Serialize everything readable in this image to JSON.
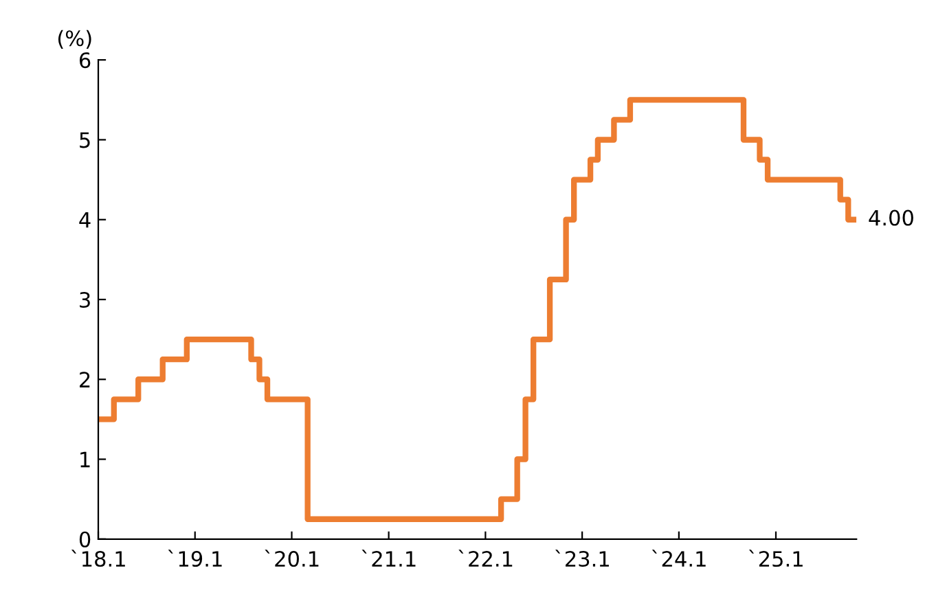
{
  "chart_data": {
    "type": "step",
    "ylabel": "(%)",
    "x": [
      "2018-01",
      "2018-03",
      "2018-06",
      "2018-09",
      "2018-12",
      "2019-08",
      "2019-09",
      "2019-10",
      "2020-03",
      "2022-03",
      "2022-05",
      "2022-06",
      "2022-07",
      "2022-09",
      "2022-11",
      "2022-12",
      "2023-02",
      "2023-03",
      "2023-05",
      "2023-07",
      "2024-09",
      "2024-11",
      "2024-12",
      "2025-09",
      "2025-10",
      "2025-11"
    ],
    "series": [
      {
        "color": "#ed7d31",
        "values": [
          1.5,
          1.75,
          2.0,
          2.25,
          2.5,
          2.25,
          2.0,
          1.75,
          0.25,
          0.5,
          1.0,
          1.75,
          2.5,
          3.25,
          4.0,
          4.5,
          4.75,
          5.0,
          5.25,
          5.5,
          5.0,
          4.75,
          4.5,
          4.25,
          4.0,
          4.0
        ],
        "value_labels": [
          null,
          null,
          null,
          null,
          null,
          null,
          null,
          null,
          null,
          null,
          null,
          null,
          null,
          null,
          null,
          null,
          null,
          null,
          null,
          null,
          null,
          null,
          null,
          null,
          null,
          "4.00"
        ]
      }
    ],
    "xlim": [
      "2018-01",
      "2025-11"
    ],
    "xticks": [
      {
        "value": "2018-01",
        "label": "`18.1"
      },
      {
        "value": "2019-01",
        "label": "`19.1"
      },
      {
        "value": "2020-01",
        "label": "`20.1"
      },
      {
        "value": "2021-01",
        "label": "`21.1"
      },
      {
        "value": "2022-01",
        "label": "`22.1"
      },
      {
        "value": "2023-01",
        "label": "`23.1"
      },
      {
        "value": "2024-01",
        "label": "`24.1"
      },
      {
        "value": "2025-01",
        "label": "`25.1"
      }
    ],
    "ylim": [
      0,
      6
    ],
    "yticks": [
      0,
      1,
      2,
      3,
      4,
      5,
      6
    ],
    "grid": false,
    "legend": false
  }
}
